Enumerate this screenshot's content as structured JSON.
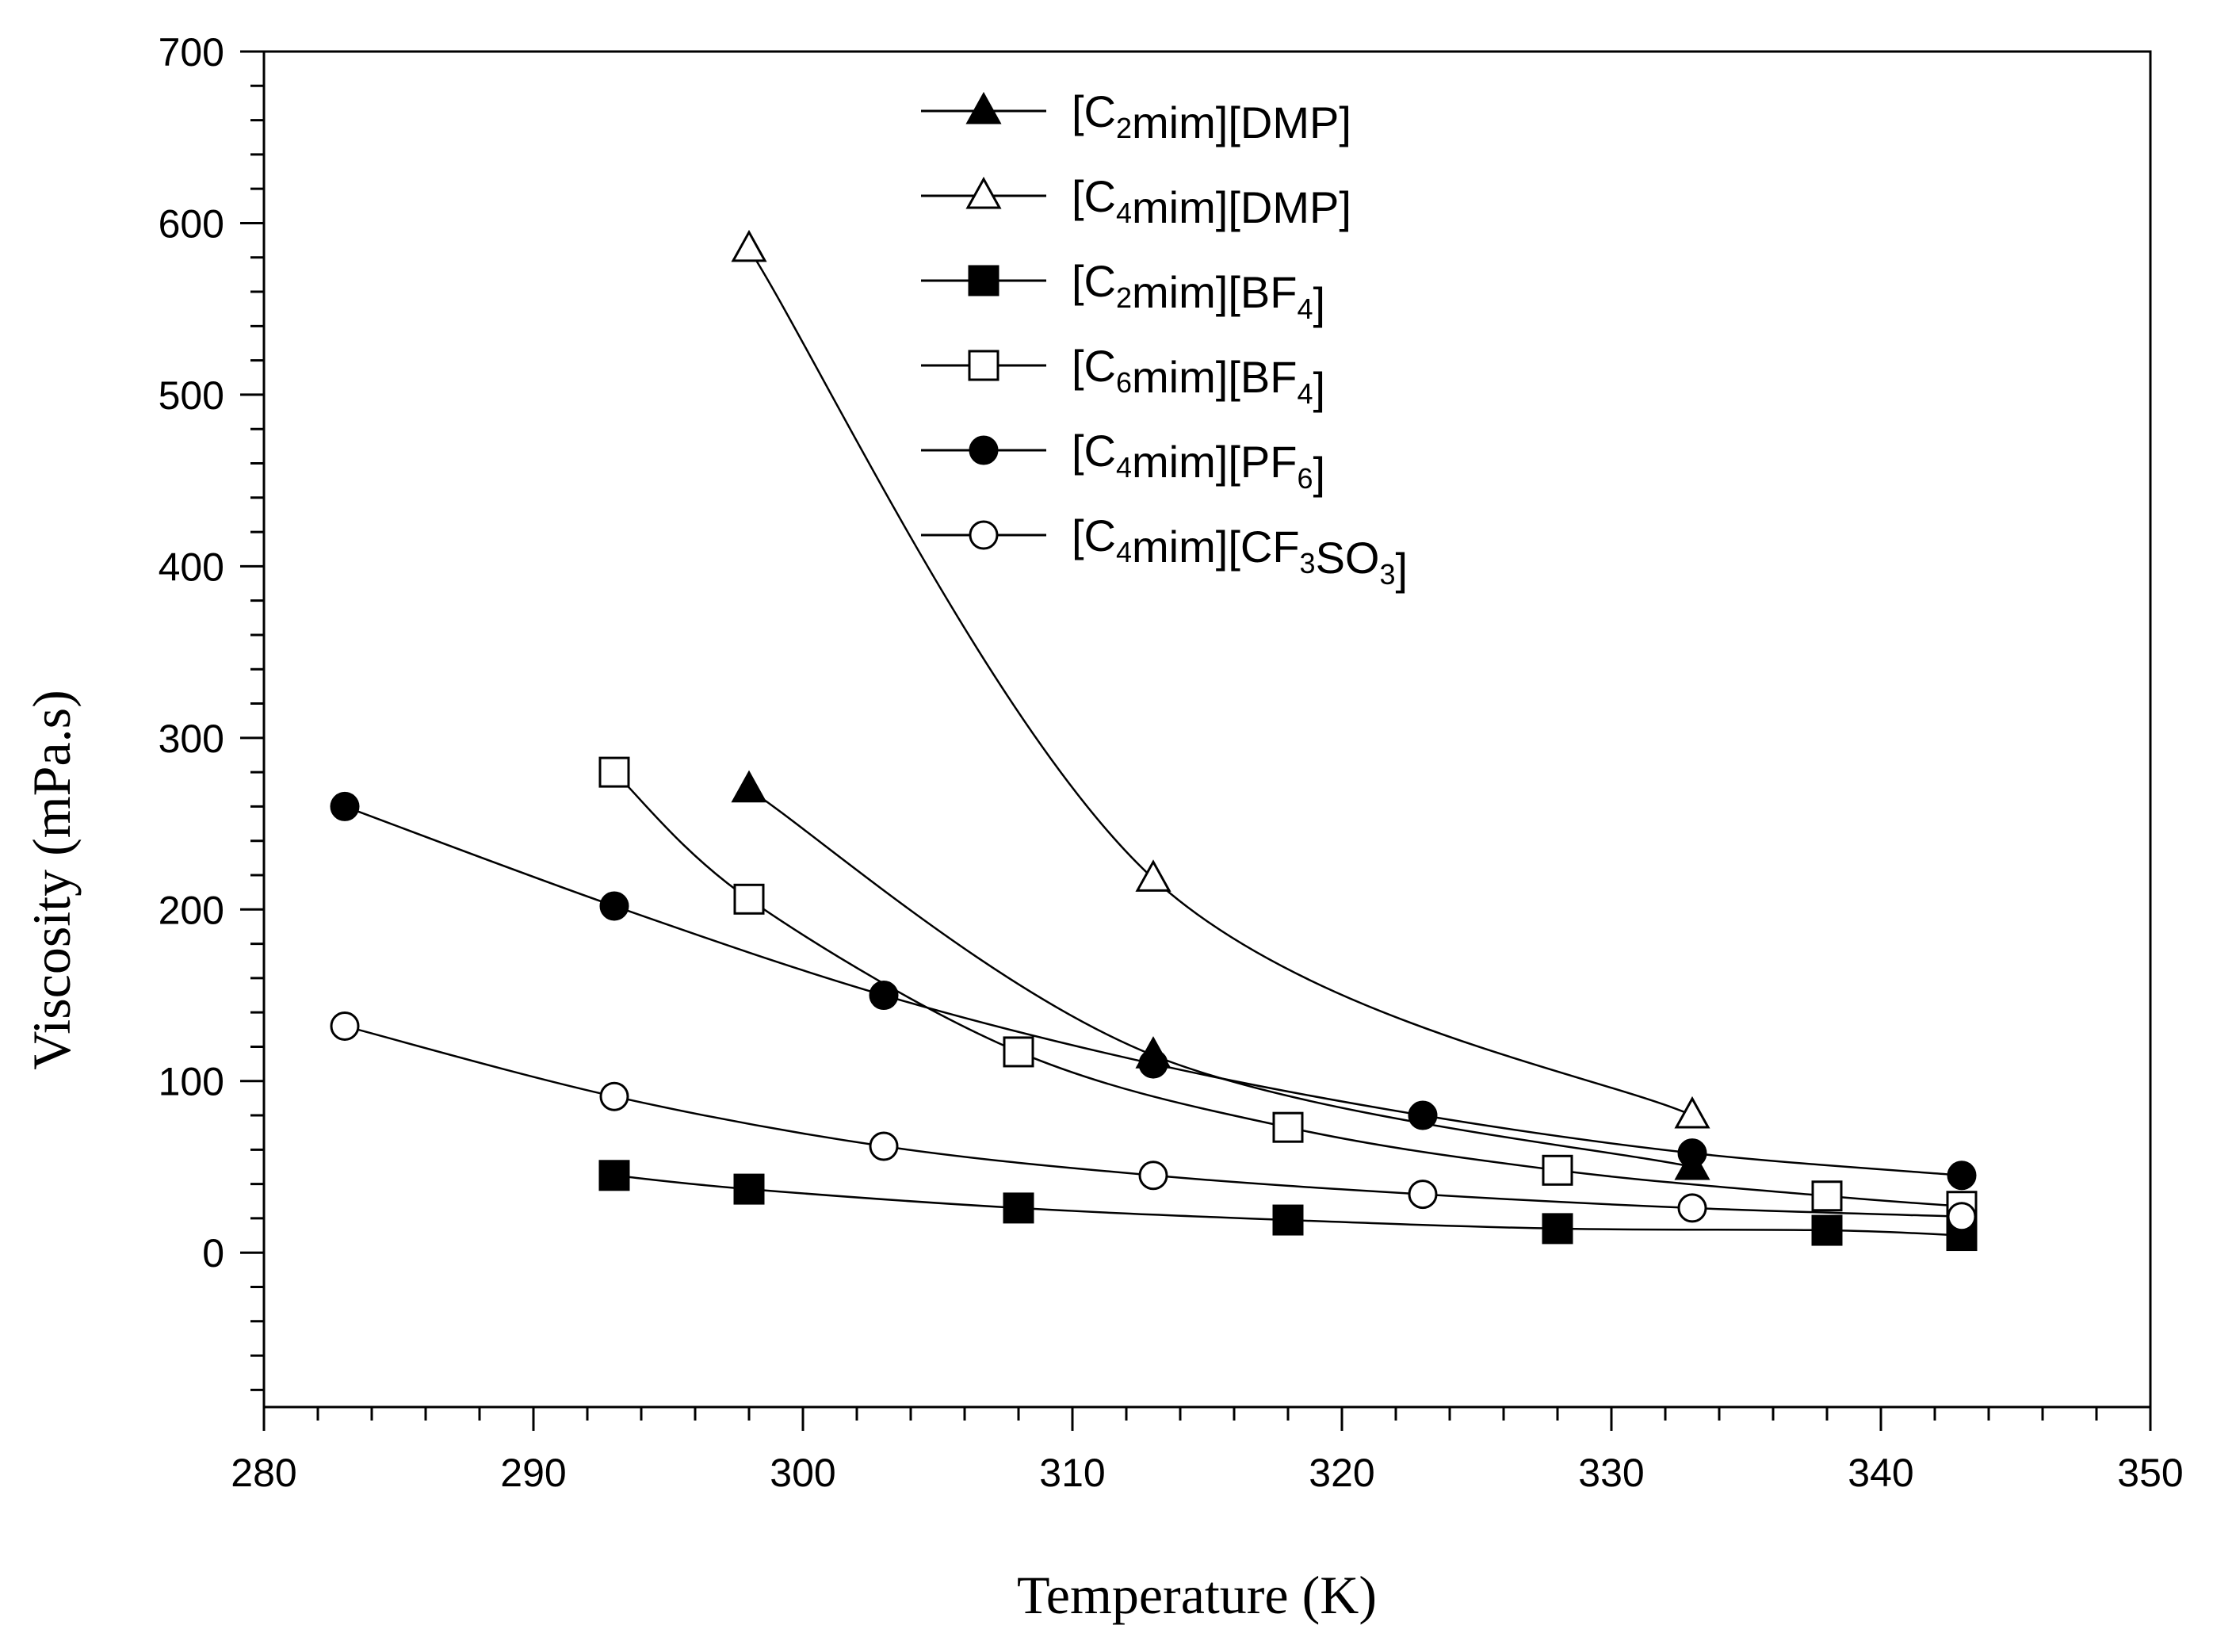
{
  "chart_data": {
    "type": "line",
    "title": "",
    "xlabel": "Temperature (K)",
    "ylabel": "Viscosity (mPa.s)",
    "xlim": [
      280,
      350
    ],
    "ylim": [
      -90,
      700
    ],
    "xticks": [
      280,
      290,
      300,
      310,
      320,
      330,
      340,
      350
    ],
    "yticks": [
      0,
      100,
      200,
      300,
      400,
      500,
      600,
      700
    ],
    "grid": false,
    "legend_position": "top-center",
    "series": [
      {
        "name": "[C2mim][DMP]",
        "label_parts": [
          [
            "[C",
            ""
          ],
          [
            "2",
            "sub"
          ],
          [
            "mim][DMP]",
            ""
          ]
        ],
        "marker": "triangle",
        "filled": true,
        "x": [
          298,
          313,
          333
        ],
        "y": [
          270,
          115,
          50
        ]
      },
      {
        "name": "[C4mim][DMP]",
        "label_parts": [
          [
            "[C",
            ""
          ],
          [
            "4",
            "sub"
          ],
          [
            "mim][DMP]",
            ""
          ]
        ],
        "marker": "triangle",
        "filled": false,
        "x": [
          298,
          313,
          333
        ],
        "y": [
          585,
          218,
          80
        ]
      },
      {
        "name": "[C2mim][BF4]",
        "label_parts": [
          [
            "[C",
            ""
          ],
          [
            "2",
            "sub"
          ],
          [
            "mim][BF",
            ""
          ],
          [
            "4",
            "sub"
          ],
          [
            "]",
            ""
          ]
        ],
        "marker": "square",
        "filled": true,
        "x": [
          293,
          298,
          308,
          318,
          328,
          338,
          343
        ],
        "y": [
          45,
          37,
          26,
          19,
          14,
          13,
          10
        ]
      },
      {
        "name": "[C6mim][BF4]",
        "label_parts": [
          [
            "[C",
            ""
          ],
          [
            "6",
            "sub"
          ],
          [
            "mim][BF",
            ""
          ],
          [
            "4",
            "sub"
          ],
          [
            "]",
            ""
          ]
        ],
        "marker": "square",
        "filled": false,
        "x": [
          293,
          298,
          308,
          318,
          328,
          338,
          343
        ],
        "y": [
          280,
          206,
          117,
          73,
          48,
          33,
          27
        ]
      },
      {
        "name": "[C4mim][PF6]",
        "label_parts": [
          [
            "[C",
            ""
          ],
          [
            "4",
            "sub"
          ],
          [
            "mim][PF",
            ""
          ],
          [
            "6",
            "sub"
          ],
          [
            "]",
            ""
          ]
        ],
        "marker": "circle",
        "filled": true,
        "x": [
          283,
          293,
          303,
          313,
          323,
          333,
          343
        ],
        "y": [
          260,
          202,
          150,
          110,
          80,
          58,
          45
        ]
      },
      {
        "name": "[C4mim][CF3SO3]",
        "label_parts": [
          [
            "[C",
            ""
          ],
          [
            "4",
            "sub"
          ],
          [
            "mim][CF",
            ""
          ],
          [
            "3",
            "sub"
          ],
          [
            "SO",
            ""
          ],
          [
            "3",
            "sub"
          ],
          [
            "]",
            ""
          ]
        ],
        "marker": "circle",
        "filled": false,
        "x": [
          283,
          293,
          303,
          313,
          323,
          333,
          343
        ],
        "y": [
          132,
          91,
          62,
          45,
          34,
          26,
          21
        ]
      }
    ]
  }
}
